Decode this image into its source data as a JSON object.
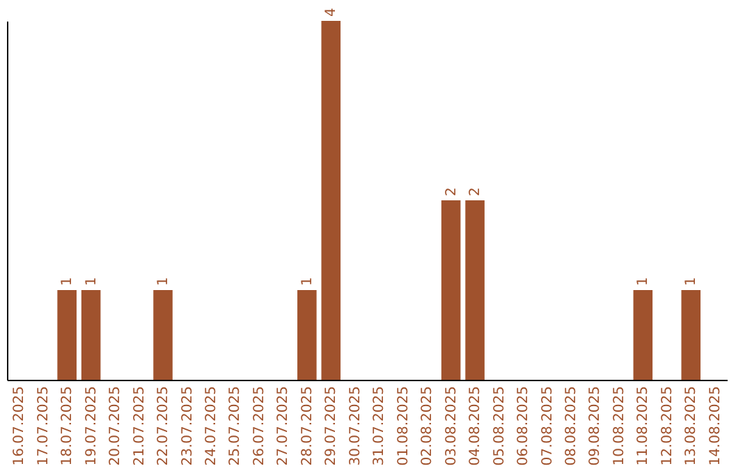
{
  "chart_data": {
    "type": "bar",
    "categories": [
      "16.07.2025",
      "17.07.2025",
      "18.07.2025",
      "19.07.2025",
      "20.07.2025",
      "21.07.2025",
      "22.07.2025",
      "23.07.2025",
      "24.07.2025",
      "25.07.2025",
      "26.07.2025",
      "27.07.2025",
      "28.07.2025",
      "29.07.2025",
      "30.07.2025",
      "31.07.2025",
      "01.08.2025",
      "02.08.2025",
      "03.08.2025",
      "04.08.2025",
      "05.08.2025",
      "06.08.2025",
      "07.08.2025",
      "08.08.2025",
      "09.08.2025",
      "10.08.2025",
      "11.08.2025",
      "12.08.2025",
      "13.08.2025",
      "14.08.2025"
    ],
    "values": [
      null,
      null,
      1,
      1,
      null,
      null,
      1,
      null,
      null,
      null,
      null,
      null,
      1,
      4,
      null,
      null,
      null,
      null,
      2,
      2,
      null,
      null,
      null,
      null,
      null,
      null,
      1,
      null,
      1,
      null
    ],
    "color": "#a0522d",
    "data_labels": true,
    "tick_labels": "x"
  }
}
